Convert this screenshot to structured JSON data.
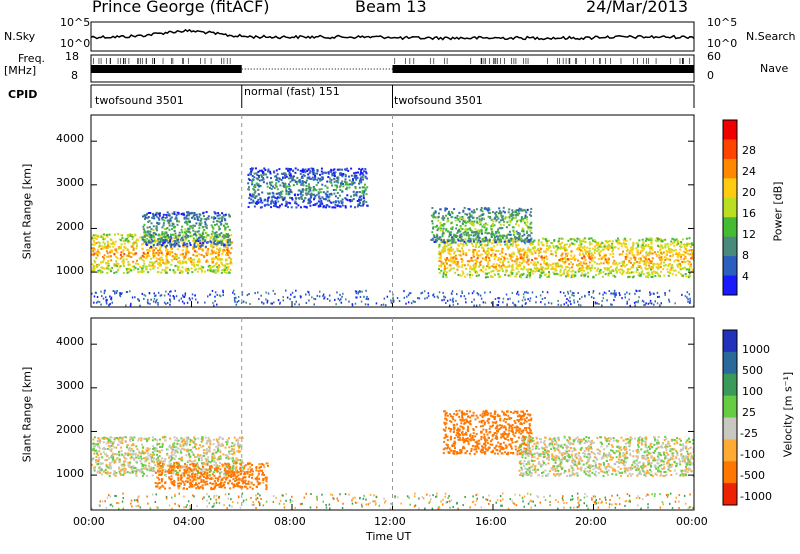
{
  "header": {
    "station": "Prince George (fitACF)",
    "beam": "Beam 13",
    "date": "24/Mar/2013"
  },
  "noise_panel": {
    "left_label": "N.Sky",
    "right_label": "N.Search",
    "yticks": [
      "10^5",
      "10^0"
    ]
  },
  "freq_panel": {
    "label_line1": "Freq.",
    "label_line2": "[MHz]",
    "right_label": "Nave",
    "left_ticks": [
      "18",
      "8"
    ],
    "right_ticks": [
      "60",
      "0"
    ]
  },
  "cpid_panel": {
    "label": "CPID",
    "segments": [
      {
        "label": "twofsound 3501",
        "start_h": 0,
        "end_h": 6
      },
      {
        "label": "normal (fast) 151",
        "start_h": 6,
        "end_h": 12
      },
      {
        "label": "twofsound 3501",
        "start_h": 12,
        "end_h": 24
      }
    ]
  },
  "power_colorbar": {
    "label": "Power [dB]",
    "ticks": [
      "4",
      "8",
      "12",
      "16",
      "20",
      "24",
      "28"
    ],
    "colors": [
      "#1a1aff",
      "#2a5fbf",
      "#4a8a7a",
      "#44bb33",
      "#bbdd22",
      "#ffcc11",
      "#ff8800",
      "#ff4400",
      "#ee0000"
    ]
  },
  "velocity_colorbar": {
    "label": "Velocity [m s⁻¹]",
    "ticks": [
      "1000",
      "500",
      "100",
      "25",
      "-25",
      "-100",
      "-500",
      "-1000"
    ],
    "colors": [
      "#2233bb",
      "#2a6a9a",
      "#3a9a5a",
      "#66cc44",
      "#c8c8c0",
      "#ffaa33",
      "#ff7700",
      "#ee2200"
    ]
  },
  "chart_data": [
    {
      "type": "heatmap",
      "quantity": "Power",
      "xlabel": "Time UT",
      "ylabel": "Slant Range [km]",
      "xticks": [
        "00:00",
        "04:00",
        "08:00",
        "12:00",
        "16:00",
        "20:00",
        "00:00"
      ],
      "xlim": [
        0,
        24
      ],
      "yticks": [
        1000,
        2000,
        3000,
        4000
      ],
      "ylim": [
        200,
        4600
      ],
      "scatter_regions": [
        {
          "t_start": 0.0,
          "t_end": 5.6,
          "range_low": 1000,
          "range_high": 1900,
          "typical_power_db": 20
        },
        {
          "t_start": 2.0,
          "t_end": 5.5,
          "range_low": 1600,
          "range_high": 2400,
          "typical_power_db": 10
        },
        {
          "t_start": 6.2,
          "t_end": 11.0,
          "range_low": 2500,
          "range_high": 3400,
          "typical_power_db": 8
        },
        {
          "t_start": 13.8,
          "t_end": 24.0,
          "range_low": 900,
          "range_high": 1800,
          "typical_power_db": 20
        },
        {
          "t_start": 13.5,
          "t_end": 17.5,
          "range_low": 1700,
          "range_high": 2500,
          "typical_power_db": 12
        }
      ]
    },
    {
      "type": "heatmap",
      "quantity": "Velocity",
      "xlabel": "Time UT",
      "ylabel": "Slant Range [km]",
      "xticks": [
        "00:00",
        "04:00",
        "08:00",
        "12:00",
        "16:00",
        "20:00",
        "00:00"
      ],
      "xlim": [
        0,
        24
      ],
      "yticks": [
        1000,
        2000,
        3000,
        4000
      ],
      "ylim": [
        200,
        4600
      ],
      "scatter_regions": [
        {
          "t_start": 0.0,
          "t_end": 6.0,
          "range_low": 1000,
          "range_high": 1900,
          "typical_velocity": 0
        },
        {
          "t_start": 2.5,
          "t_end": 7.0,
          "range_low": 700,
          "range_high": 1300,
          "typical_velocity": -150
        },
        {
          "t_start": 14.0,
          "t_end": 17.5,
          "range_low": 1500,
          "range_high": 2500,
          "typical_velocity": -200
        },
        {
          "t_start": 17.0,
          "t_end": 24.0,
          "range_low": 1000,
          "range_high": 1900,
          "typical_velocity": 0
        }
      ]
    }
  ]
}
